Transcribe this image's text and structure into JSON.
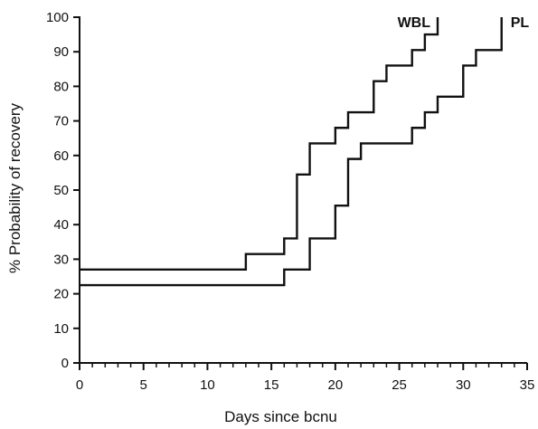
{
  "chart_data": {
    "type": "line",
    "step": true,
    "title": "",
    "xlabel": "Days since bcnu",
    "ylabel": "% Probability of recovery",
    "xlim": [
      0,
      35
    ],
    "ylim": [
      0,
      100
    ],
    "x_ticks": [
      0,
      5,
      10,
      15,
      20,
      25,
      30,
      35
    ],
    "y_ticks": [
      0,
      10,
      20,
      30,
      40,
      50,
      60,
      70,
      80,
      90,
      100
    ],
    "grid": false,
    "series": [
      {
        "name": "WBL",
        "x": [
          0,
          13,
          16,
          17,
          18,
          20,
          21,
          23,
          24,
          26,
          27,
          28,
          28
        ],
        "y": [
          27,
          31.5,
          36,
          54.5,
          63.5,
          68,
          72.5,
          81.5,
          86,
          90.5,
          95,
          95,
          100
        ]
      },
      {
        "name": "PL",
        "x": [
          0,
          16,
          18,
          20,
          21,
          22,
          26,
          27,
          28,
          30,
          31,
          33,
          33
        ],
        "y": [
          22.5,
          27,
          36,
          45.5,
          59,
          63.5,
          68,
          72.5,
          77,
          86,
          90.5,
          90.5,
          100
        ]
      }
    ]
  }
}
